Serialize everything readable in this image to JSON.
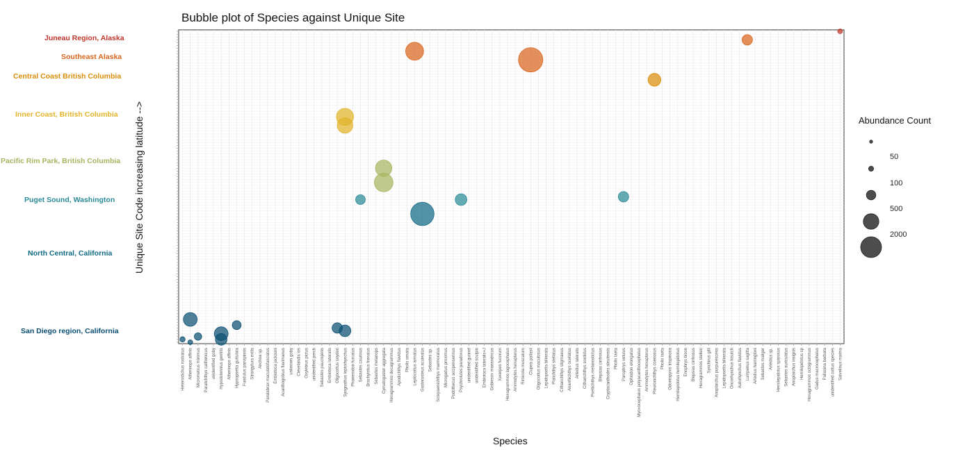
{
  "chart_data": {
    "type": "scatter",
    "title": "Bubble plot of Species against Unique Site",
    "xlabel": "Species",
    "ylabel": "Unique Site Code increasing latitude -->",
    "grid": true,
    "legend": {
      "title": "Abundance Count",
      "placement": "right",
      "entries": [
        "50",
        "100",
        "500",
        "2000"
      ]
    },
    "regions": [
      {
        "name": "Juneau Region, Alaska",
        "color": "#C0362C"
      },
      {
        "name": "Southeast Alaska",
        "color": "#D9651D"
      },
      {
        "name": "Central Coast British Columbia",
        "color": "#D98E0A"
      },
      {
        "name": "Inner Coast, British Columbia",
        "color": "#E2B42A"
      },
      {
        "name": "Pacific Rim Park, British Columbia",
        "color": "#A7B560"
      },
      {
        "name": "Puget Sound, Washington",
        "color": "#2A8A96"
      },
      {
        "name": "North Central, California",
        "color": "#116A85"
      },
      {
        "name": "San Diego region, California",
        "color": "#0B4F73"
      }
    ],
    "species": [
      "Heterostichus rostratus",
      "Atherinops affinis",
      "Micrometrus minimus",
      "Paralichthys californicus",
      "unidentified goby",
      "Hypsoblennius gentilis",
      "Atherinops affinis",
      "Hypsopsetta guttulata",
      "Fundulus parvipinnis",
      "Strongylura exilis",
      "Anchoa sp.",
      "Paralabrax maculatofasciatus",
      "Embiotoca jacksoni",
      "Acanthogobius flavimanus",
      "unknown goby",
      "Clevelandia ios",
      "Oxylebius pictus",
      "unidentified perch",
      "Sebastes paucispinis",
      "Embiotoca lateralis",
      "Oligocottus snyderi",
      "Syngnathus leptorhynchus",
      "Phanerodon furcatus",
      "Sebastes caurinus",
      "Brachyistius frenatus",
      "Sebastes melanops",
      "Cymatogaster aggregata",
      "Hexagrammos decagrammus",
      "Apodichthys flavidus",
      "Pholis ornata",
      "Leptocottus armatus",
      "Gasterosteus aculeatus",
      "Sebastes sp.",
      "Scorpaenichthys marmoratus",
      "Microgadus proximus",
      "Podothecus accipenserinus",
      "Psychrolutes paradoxus",
      "unidentified gunnel",
      "unidentified sculpin",
      "Embiotoca lateralis+J",
      "Gobiesox maeandricus",
      "Xererpes fucorum",
      "Hexagrammos lagocephalus",
      "Ammodytes hexapterus",
      "Rimicola muscarum",
      "Clupea pallasii",
      "Oligocottus maculosus",
      "Lepidopsetta bilineata",
      "Platichthys stellatus",
      "Citharichthys stigmaeus",
      "Anarrhichthys ocellatus",
      "Artedius lateralis",
      "Citharichthys sordidus",
      "Psettichthys melanostictus",
      "Blepsias cirrhosus",
      "Cryptacanthodes aleutensis",
      "Pholis laeta",
      "Parophrys vetulus",
      "Ophiodon elongatus",
      "Myoxocephalus polyacanthocephalus",
      "Ammodytes hexapterus",
      "Pleuronichthys coenosus",
      "Pholis laeta",
      "Odontopyxis trispinosa",
      "Hemilepidotus hemilepidotus",
      "Enophrys bison",
      "Blepsias cirrhosus",
      "Hexagrammos stelleri",
      "Synchirus gilli",
      "Anoplarchus purpurescens",
      "Lepidopsetta bilineata",
      "Oncorhynchus kisutch",
      "Aulorhynchus flavidus",
      "Lumpenus sagitta",
      "Artedius harringtoni",
      "Sebastes maliger",
      "Artedius sp.",
      "Hemilepidotus spinosus",
      "Sebastes auriculatus",
      "Anoplarchus insignis",
      "Hemilepidotus sp",
      "Hexagrammos octogrammus",
      "Gadus macrocephalus",
      "Pallasina barbata",
      "unidentified cottus species",
      "Salvelinus malma"
    ],
    "site_count": 110,
    "points": [
      {
        "x": "Micrometrus minimus",
        "site": 3,
        "abundance": 120
      },
      {
        "x": "Heterostichus rostratus",
        "site": 2,
        "abundance": 40
      },
      {
        "x": "Atherinops affinis",
        "site": 1,
        "abundance": 30
      },
      {
        "x": "Hypsoblennius gentilis",
        "site": 4,
        "abundance": 600
      },
      {
        "x": "Hypsoblennius gentilis",
        "site": 2,
        "abundance": 400
      },
      {
        "x": "Atherinops affinis",
        "site": 9,
        "abundance": 600
      },
      {
        "x": "Hypsopsetta guttulata",
        "site": 7,
        "abundance": 200
      },
      {
        "x": "Syngnathus leptorhynchus",
        "site": 5,
        "abundance": 400
      },
      {
        "x": "Oligocottus snyderi",
        "site": 6,
        "abundance": 300
      },
      {
        "x": "Gasterosteus aculeatus",
        "site": 46,
        "abundance": 2000
      },
      {
        "x": "Clupea pallasii",
        "site": 100,
        "abundance": 2200
      },
      {
        "x": "Cymatogaster aggregata",
        "site": 57,
        "abundance": 1200
      },
      {
        "x": "Cymatogaster aggregata",
        "site": 62,
        "abundance": 900
      },
      {
        "x": "Syngnathus leptorhynchus",
        "site": 80,
        "abundance": 1000
      },
      {
        "x": "Syngnathus leptorhynchus",
        "site": 77,
        "abundance": 800
      },
      {
        "x": "Leptocottus armatus",
        "site": 103,
        "abundance": 1100
      },
      {
        "x": "Pleuronichthys coenosus",
        "site": 93,
        "abundance": 500
      },
      {
        "x": "Lumpenus sagitta",
        "site": 107,
        "abundance": 300
      },
      {
        "x": "Psychrolutes paradoxus",
        "site": 51,
        "abundance": 400
      },
      {
        "x": "Parophrys vetulus",
        "site": 52,
        "abundance": 300
      },
      {
        "x": "Sebastes caurinus",
        "site": 51,
        "abundance": 250
      },
      {
        "x": "Salvelinus malma",
        "site": 110,
        "abundance": 30
      }
    ]
  }
}
